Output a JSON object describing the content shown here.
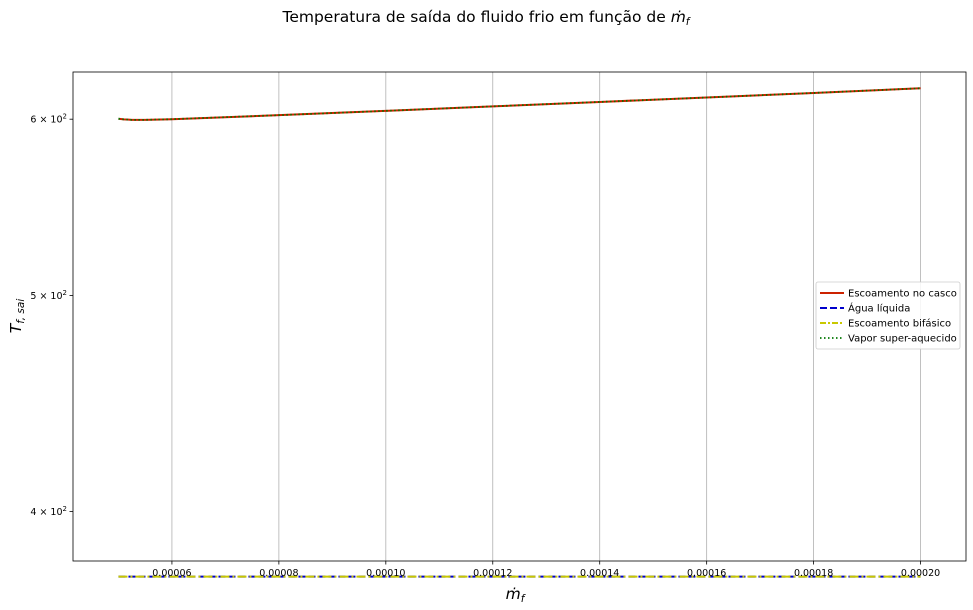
{
  "chart_data": {
    "type": "line",
    "title": "Temperatura de saída do fluido frio em função de ",
    "title_math": "ṁ",
    "title_math_sub": "f",
    "xlabel": "ṁ",
    "xlabel_sub": "f",
    "ylabel": "T",
    "ylabel_sub": "f, sai",
    "xlim": [
      4.15e-05,
      0.0002085
    ],
    "ylim": [
      380,
      630
    ],
    "yscale": "log",
    "grid": "x-major vertical",
    "legend_position": "center-right",
    "x_ticks": [
      6e-05,
      8e-05,
      0.0001,
      0.00012,
      0.00014,
      0.00016,
      0.00018,
      0.0002
    ],
    "x_tick_labels": [
      "0.00006",
      "0.00008",
      "0.00010",
      "0.00012",
      "0.00014",
      "0.00016",
      "0.00018",
      "0.00020"
    ],
    "y_ticks": [
      {
        "value": 400,
        "mantissa": "4",
        "base": "10",
        "exp": "2"
      },
      {
        "value": 500,
        "mantissa": "5",
        "base": "10",
        "exp": "2"
      },
      {
        "value": 600,
        "mantissa": "6",
        "base": "10",
        "exp": "2"
      }
    ],
    "series": [
      {
        "name": "Escoamento no casco",
        "color": "#cc2200",
        "style": "solid",
        "x": [
          5e-05,
          5.1e-05,
          5.25e-05,
          5.5e-05,
          6e-05,
          8e-05,
          0.0001,
          0.00012,
          0.00014,
          0.00016,
          0.00018,
          0.0002
        ],
        "y": [
          600.3,
          599.9,
          599.6,
          599.6,
          600.0,
          602.5,
          605.2,
          608.0,
          610.8,
          613.6,
          616.5,
          619.5
        ]
      },
      {
        "name": "Água líquida",
        "color": "#0000cc",
        "style": "dashed",
        "x": [
          5e-05,
          0.0002
        ],
        "y": [
          373.9,
          373.9
        ]
      },
      {
        "name": "Escoamento bifásico",
        "color": "#c8c800",
        "style": "dashdot",
        "x": [
          5e-05,
          0.0002
        ],
        "y": [
          373.9,
          373.9
        ]
      },
      {
        "name": "Vapor super-aquecido",
        "color": "#007700",
        "style": "dotted",
        "x": [
          5e-05,
          5.1e-05,
          5.25e-05,
          5.5e-05,
          6e-05,
          8e-05,
          0.0001,
          0.00012,
          0.00014,
          0.00016,
          0.00018,
          0.0002
        ],
        "y": [
          600.3,
          599.9,
          599.6,
          599.6,
          600.0,
          602.5,
          605.2,
          608.0,
          610.8,
          613.6,
          616.5,
          619.5
        ]
      }
    ]
  }
}
